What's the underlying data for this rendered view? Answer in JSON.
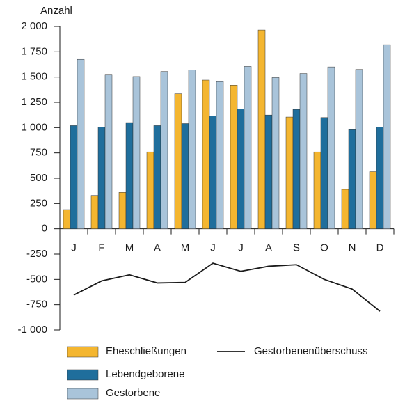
{
  "chart_data": {
    "type": "bar",
    "y_label": "Anzahl",
    "categories": [
      "J",
      "F",
      "M",
      "A",
      "M",
      "J",
      "J",
      "A",
      "S",
      "O",
      "N",
      "D"
    ],
    "series": [
      {
        "name": "Eheschließungen",
        "type": "bar",
        "color": "#f4b630",
        "values": [
          190,
          330,
          360,
          760,
          1335,
          1470,
          1420,
          1965,
          1105,
          760,
          390,
          565
        ]
      },
      {
        "name": "Lebendgeborene",
        "type": "bar",
        "color": "#1f6e9c",
        "values": [
          1020,
          1005,
          1050,
          1020,
          1040,
          1115,
          1185,
          1125,
          1180,
          1100,
          980,
          1005
        ]
      },
      {
        "name": "Gestorbene",
        "type": "bar",
        "color": "#a9c4da",
        "values": [
          1675,
          1520,
          1505,
          1555,
          1570,
          1455,
          1605,
          1495,
          1535,
          1600,
          1575,
          1820
        ]
      },
      {
        "name": "Gestorbenenüberschuss",
        "type": "line",
        "color": "#1a1a1a",
        "values": [
          -655,
          -515,
          -455,
          -535,
          -530,
          -340,
          -420,
          -370,
          -355,
          -500,
          -595,
          -815
        ]
      }
    ],
    "ylim": [
      -1000,
      2000
    ],
    "yticks": [
      {
        "value": -1000,
        "label": "-1 000"
      },
      -750,
      -500,
      -250,
      0,
      250,
      500,
      750,
      {
        "value": 1000,
        "label": "1 000"
      },
      {
        "value": 1250,
        "label": "1 250"
      },
      {
        "value": 1500,
        "label": "1 500"
      },
      {
        "value": 1750,
        "label": "1 750"
      },
      {
        "value": 2000,
        "label": "2 000"
      }
    ]
  }
}
